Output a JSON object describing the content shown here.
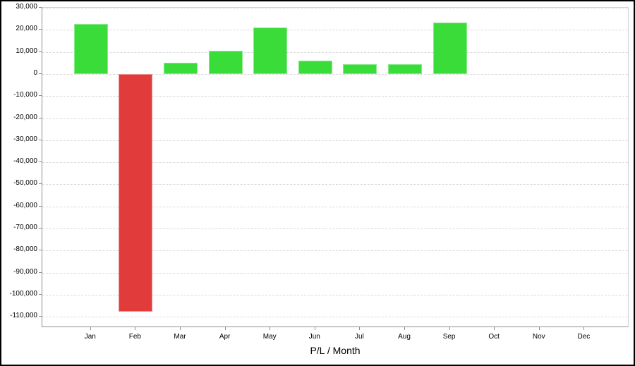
{
  "chart_data": {
    "type": "bar",
    "title": "",
    "xlabel": "P/L / Month",
    "ylabel": "",
    "categories": [
      "Jan",
      "Feb",
      "Mar",
      "Apr",
      "May",
      "Jun",
      "Jul",
      "Aug",
      "Sep",
      "Oct",
      "Nov",
      "Dec"
    ],
    "values": [
      22500,
      -107500,
      5200,
      10600,
      21100,
      6200,
      4500,
      4300,
      23300,
      0,
      0,
      0
    ],
    "ylim": [
      -115000,
      30000
    ],
    "grid": "horizontal-dashed",
    "legend": "none",
    "yticks": [
      {
        "value": 30000,
        "label": "30,000"
      },
      {
        "value": 20000,
        "label": "20,000"
      },
      {
        "value": 10000,
        "label": "10,000"
      },
      {
        "value": 0,
        "label": "0"
      },
      {
        "value": -10000,
        "label": "-10,000"
      },
      {
        "value": -20000,
        "label": "-20,000"
      },
      {
        "value": -30000,
        "label": "-30,000"
      },
      {
        "value": -40000,
        "label": "-40,000"
      },
      {
        "value": -50000,
        "label": "-50,000"
      },
      {
        "value": -60000,
        "label": "-60,000"
      },
      {
        "value": -70000,
        "label": "-70,000"
      },
      {
        "value": -80000,
        "label": "-80,000"
      },
      {
        "value": -90000,
        "label": "-90,000"
      },
      {
        "value": -100000,
        "label": "-100,000"
      },
      {
        "value": -110000,
        "label": "-110,000"
      }
    ],
    "colors": {
      "positive_bar": "#3ADC3A",
      "negative_bar": "#E23B3B",
      "gridline": "#D9D9D9",
      "axis_line": "#8E8E8E",
      "plot_border": "#D3D3D3",
      "text": "#000000",
      "frame_border": "#000000",
      "background": "#FFFFFF"
    }
  }
}
